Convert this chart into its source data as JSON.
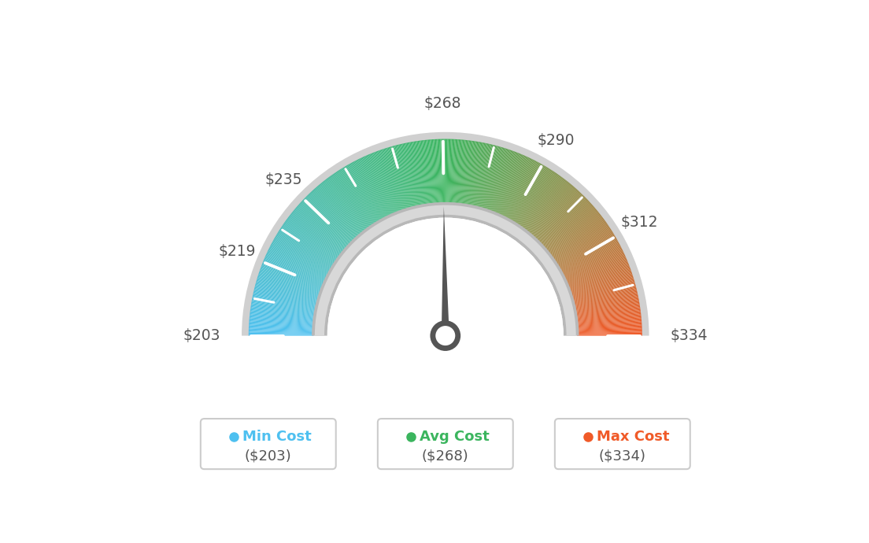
{
  "min_val": 203,
  "avg_val": 268,
  "max_val": 334,
  "needle_value": 268,
  "bg_color": "#ffffff",
  "col_blue": "#4ec0f0",
  "col_green": "#3bb55e",
  "col_orange": "#f05a28",
  "col_gray_border": "#d0d0d0",
  "col_gray_inner": "#c8c8c8",
  "col_white": "#ffffff",
  "col_needle": "#555555",
  "col_text": "#666666",
  "outer_r": 0.8,
  "inner_r": 0.535,
  "border_thickness": 0.028,
  "inner_ring_thickness": 0.055,
  "tick_labeled": [
    203,
    219,
    235,
    268,
    290,
    312,
    334
  ],
  "tick_all": [
    203,
    211,
    219,
    227,
    235,
    246,
    257,
    268,
    279,
    290,
    301,
    312,
    323,
    334
  ],
  "tick_label_map": {
    "203": "$203",
    "219": "$219",
    "235": "$235",
    "268": "$268",
    "290": "$290",
    "312": "$312",
    "334": "$334"
  },
  "legend_items": [
    {
      "label": "Min Cost",
      "value": "($203)",
      "color": "#4ec0f0",
      "dot_color": "#4ec0f0"
    },
    {
      "label": "Avg Cost",
      "value": "($268)",
      "color": "#3bb55e",
      "dot_color": "#3bb55e"
    },
    {
      "label": "Max Cost",
      "value": "($334)",
      "color": "#f05a28",
      "dot_color": "#f05a28"
    }
  ]
}
